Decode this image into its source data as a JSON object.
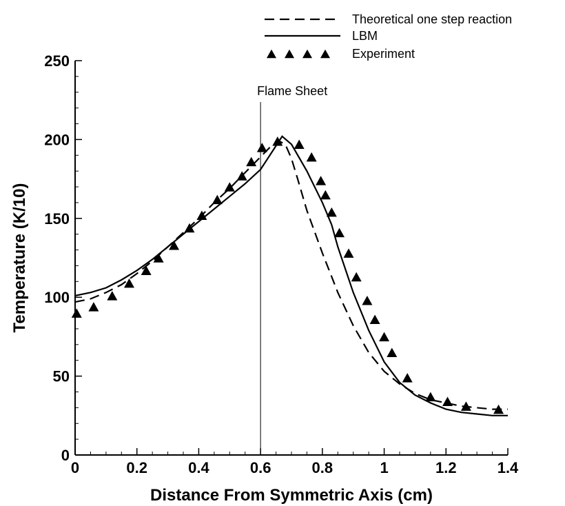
{
  "chart_data": {
    "type": "line",
    "title": "",
    "xlabel": "Distance From Symmetric Axis (cm)",
    "ylabel": "Temperature (K/10)",
    "xlim": [
      0,
      1.4
    ],
    "ylim": [
      0,
      250
    ],
    "xticks": [
      0,
      0.2,
      0.4,
      0.6,
      0.8,
      1,
      1.2,
      1.4
    ],
    "xtick_labels": [
      "0",
      "0.2",
      "0.4",
      "0.6",
      "0.8",
      "1",
      "1.2",
      "1.4"
    ],
    "yticks": [
      0,
      50,
      100,
      150,
      200,
      250
    ],
    "ytick_labels": [
      "0",
      "50",
      "100",
      "150",
      "200",
      "250"
    ],
    "grid": false,
    "legend_position": "top-right",
    "annotations": [
      {
        "text": "Flame Sheet",
        "x": 0.6,
        "type": "vertical-line"
      }
    ],
    "series": [
      {
        "name": "Theoretical one step reaction",
        "style": "dashed",
        "color": "#000000",
        "points": [
          [
            0,
            97
          ],
          [
            0.05,
            99
          ],
          [
            0.1,
            103
          ],
          [
            0.15,
            108
          ],
          [
            0.2,
            115
          ],
          [
            0.25,
            123
          ],
          [
            0.3,
            132
          ],
          [
            0.35,
            141
          ],
          [
            0.4,
            150
          ],
          [
            0.45,
            160
          ],
          [
            0.5,
            169
          ],
          [
            0.55,
            179
          ],
          [
            0.6,
            189
          ],
          [
            0.63,
            195
          ],
          [
            0.66,
            199
          ],
          [
            0.68,
            197
          ],
          [
            0.7,
            188
          ],
          [
            0.72,
            175
          ],
          [
            0.75,
            155
          ],
          [
            0.8,
            128
          ],
          [
            0.85,
            103
          ],
          [
            0.9,
            82
          ],
          [
            0.95,
            65
          ],
          [
            1.0,
            53
          ],
          [
            1.05,
            45
          ],
          [
            1.1,
            39
          ],
          [
            1.15,
            35
          ],
          [
            1.2,
            33
          ],
          [
            1.25,
            31
          ],
          [
            1.3,
            30
          ],
          [
            1.35,
            29
          ],
          [
            1.4,
            29
          ]
        ]
      },
      {
        "name": "LBM",
        "style": "solid",
        "color": "#000000",
        "points": [
          [
            0,
            101
          ],
          [
            0.05,
            103
          ],
          [
            0.1,
            106
          ],
          [
            0.15,
            111
          ],
          [
            0.2,
            117
          ],
          [
            0.25,
            124
          ],
          [
            0.3,
            132
          ],
          [
            0.35,
            140
          ],
          [
            0.4,
            148
          ],
          [
            0.45,
            156
          ],
          [
            0.5,
            164
          ],
          [
            0.55,
            172
          ],
          [
            0.6,
            181
          ],
          [
            0.64,
            193
          ],
          [
            0.67,
            202
          ],
          [
            0.7,
            197
          ],
          [
            0.75,
            180
          ],
          [
            0.8,
            160
          ],
          [
            0.83,
            146
          ],
          [
            0.85,
            132
          ],
          [
            0.9,
            103
          ],
          [
            0.95,
            79
          ],
          [
            1.0,
            59
          ],
          [
            1.05,
            46
          ],
          [
            1.1,
            38
          ],
          [
            1.15,
            33
          ],
          [
            1.2,
            29
          ],
          [
            1.25,
            27
          ],
          [
            1.3,
            26
          ],
          [
            1.35,
            25
          ],
          [
            1.4,
            25
          ]
        ]
      },
      {
        "name": "Experiment",
        "style": "marker-triangle",
        "color": "#000000",
        "points": [
          [
            0.005,
            90
          ],
          [
            0.06,
            94
          ],
          [
            0.12,
            101
          ],
          [
            0.175,
            109
          ],
          [
            0.23,
            117
          ],
          [
            0.27,
            125
          ],
          [
            0.32,
            133
          ],
          [
            0.37,
            144
          ],
          [
            0.41,
            152
          ],
          [
            0.46,
            162
          ],
          [
            0.5,
            170
          ],
          [
            0.54,
            177
          ],
          [
            0.57,
            186
          ],
          [
            0.605,
            195
          ],
          [
            0.655,
            199
          ],
          [
            0.725,
            197
          ],
          [
            0.765,
            189
          ],
          [
            0.795,
            174
          ],
          [
            0.81,
            165
          ],
          [
            0.83,
            154
          ],
          [
            0.855,
            141
          ],
          [
            0.885,
            128
          ],
          [
            0.91,
            113
          ],
          [
            0.945,
            98
          ],
          [
            0.97,
            86
          ],
          [
            1.0,
            75
          ],
          [
            1.025,
            65
          ],
          [
            1.075,
            49
          ],
          [
            1.15,
            37
          ],
          [
            1.205,
            34
          ],
          [
            1.265,
            31
          ],
          [
            1.37,
            29
          ]
        ]
      }
    ]
  }
}
